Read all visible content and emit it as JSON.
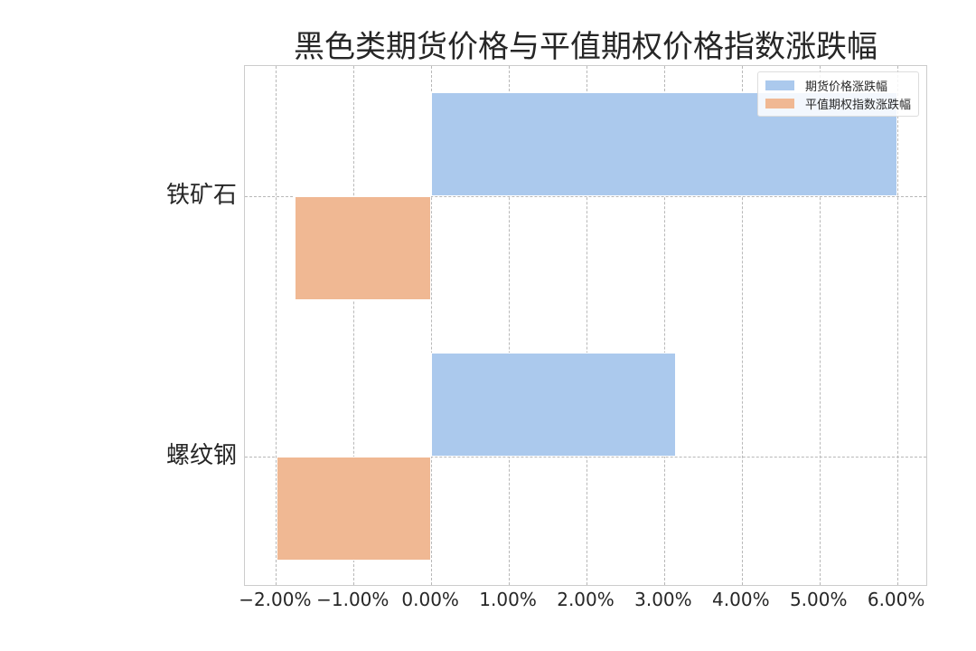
{
  "chart_data": {
    "type": "bar",
    "orientation": "horizontal",
    "title": "黑色类期货价格与平值期权价格指数涨跌幅",
    "categories": [
      "铁矿石",
      "螺纹钢"
    ],
    "series": [
      {
        "name": "期货价格涨跌幅",
        "color": "#abc9ed",
        "values": [
          6.0,
          3.15
        ]
      },
      {
        "name": "平值期权指数涨跌幅",
        "color": "#f0b893",
        "values": [
          -1.76,
          -1.99
        ]
      }
    ],
    "xlabel": "",
    "ylabel": "",
    "xlim": [
      -2.4,
      6.4
    ],
    "xticks": [
      -2,
      -1,
      0,
      1,
      2,
      3,
      4,
      5,
      6
    ],
    "xtick_labels": [
      "−2.00%",
      "−1.00%",
      "0.00%",
      "1.00%",
      "2.00%",
      "3.00%",
      "4.00%",
      "5.00%",
      "6.00%"
    ],
    "grid": true,
    "legend_position": "upper right"
  }
}
